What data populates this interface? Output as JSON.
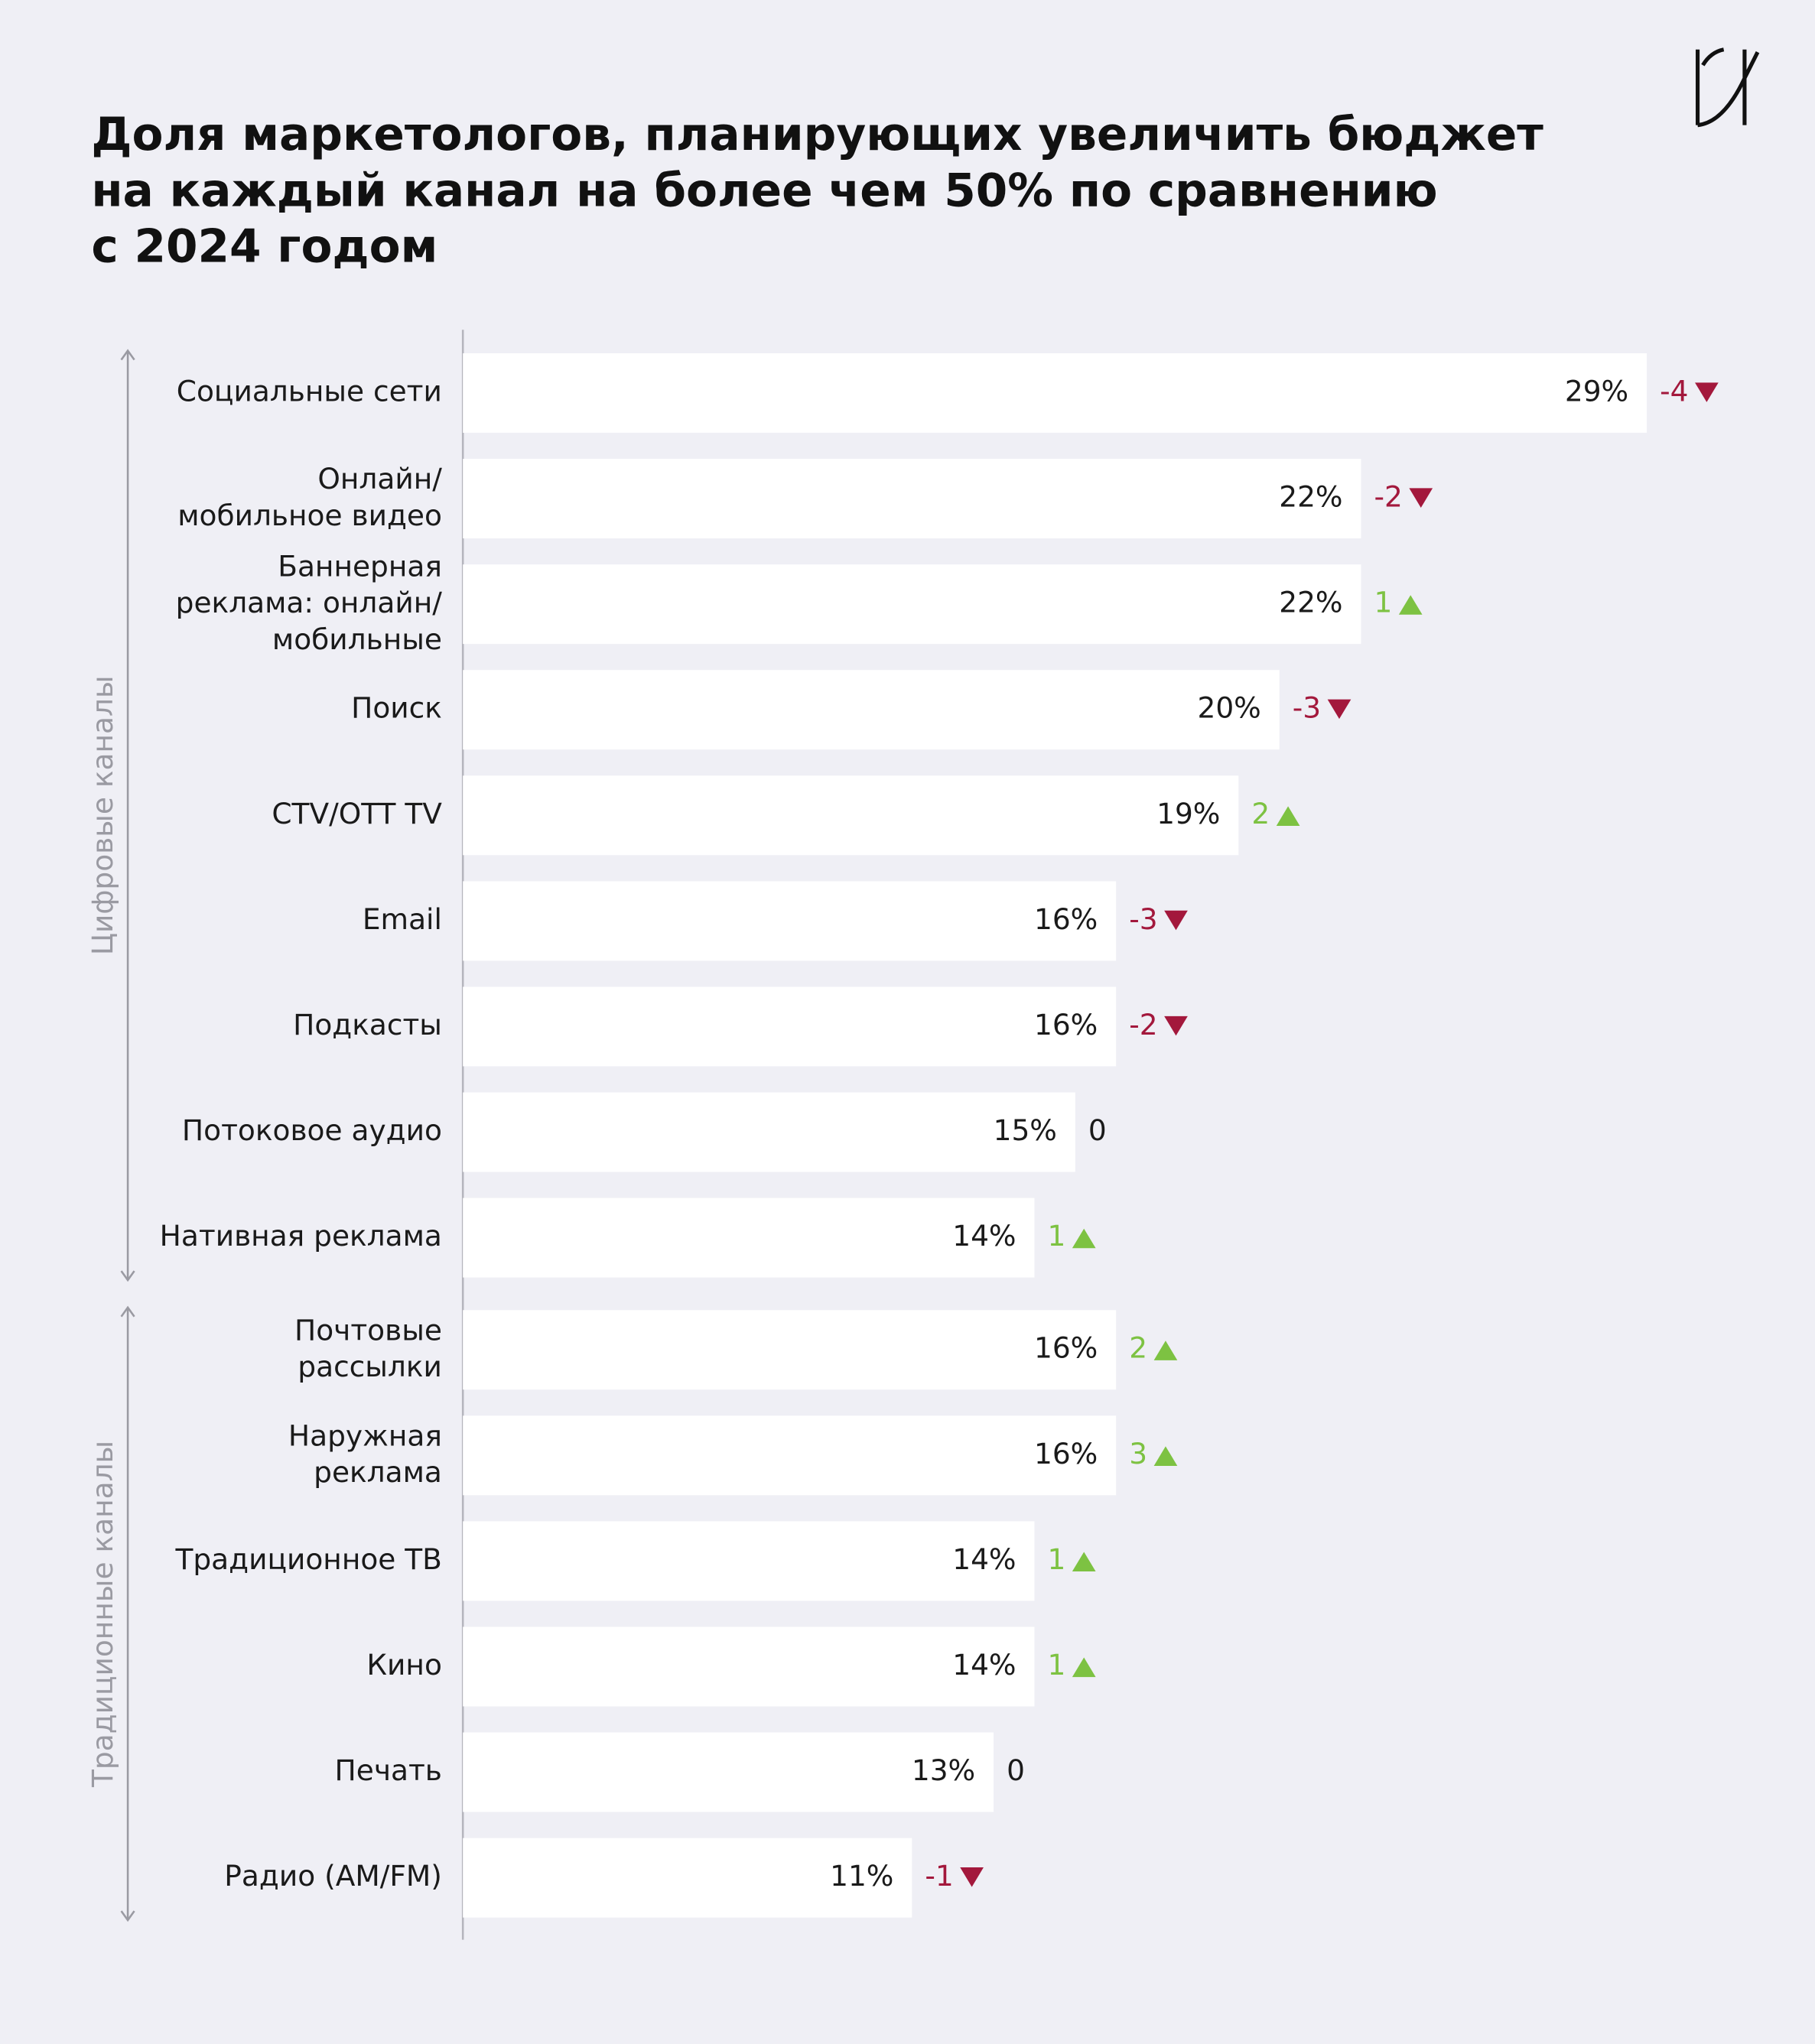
{
  "chart_data": {
    "type": "bar",
    "orientation": "horizontal",
    "title": "Доля маркетологов, планирующих увеличить бюджет\nна каждый канал на более чем 50% по сравнению\nс 2024 годом",
    "categories": [
      "Социальные сети",
      "Онлайн/\nмобильное видео",
      "Баннерная\nреклама: онлайн/\nмобильные",
      "Поиск",
      "CTV/OTT TV",
      "Email",
      "Подкасты",
      "Потоковое аудио",
      "Нативная реклама",
      "Почтовые\nрассылки",
      "Наружная\nреклама",
      "Традиционное ТВ",
      "Кино",
      "Печать",
      "Радио (AM/FM)"
    ],
    "values": [
      29,
      22,
      22,
      20,
      19,
      16,
      16,
      15,
      14,
      16,
      16,
      14,
      14,
      13,
      11
    ],
    "value_labels": [
      "29%",
      "22%",
      "22%",
      "20%",
      "19%",
      "16%",
      "16%",
      "15%",
      "14%",
      "16%",
      "16%",
      "14%",
      "14%",
      "13%",
      "11%"
    ],
    "color": "#ffffff",
    "changes": [
      -4,
      -2,
      1,
      -3,
      2,
      -3,
      -2,
      0,
      1,
      2,
      3,
      1,
      1,
      0,
      -1
    ],
    "change_colors": {
      "up": "#7dc242",
      "down": "#a3183c",
      "zero": "#1a1a1a"
    },
    "xlim": [
      0,
      29
    ],
    "groups": [
      {
        "name": "Цифровые каналы",
        "size": 9
      },
      {
        "name": "Традиционные каналы",
        "size": 6
      }
    ]
  }
}
